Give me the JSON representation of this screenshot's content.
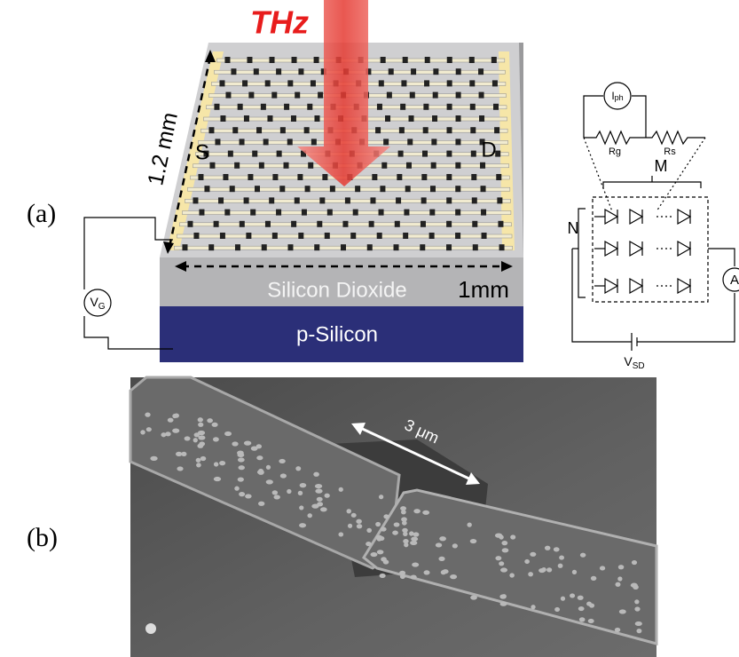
{
  "panel_a": {
    "label": "(a)",
    "arrow_label": "THz",
    "length_label": "1.2 mm",
    "source_label": "S",
    "drain_label": "D",
    "oxide_label": "Silicon Dioxide",
    "width_label": "1mm",
    "substrate_label": "p-Silicon",
    "gate_source": {
      "base": "V",
      "sub": "G"
    },
    "circuit": {
      "photocurrent": {
        "base": "I",
        "sub": "ph"
      },
      "resistor_g": "Rg",
      "resistor_s": "Rs",
      "columns_label": "M",
      "rows_label": "N",
      "ammeter": "A",
      "bias": {
        "base": "V",
        "sub": "SD"
      }
    }
  },
  "panel_b": {
    "label": "(b)",
    "scale_label": "3 μm"
  }
}
